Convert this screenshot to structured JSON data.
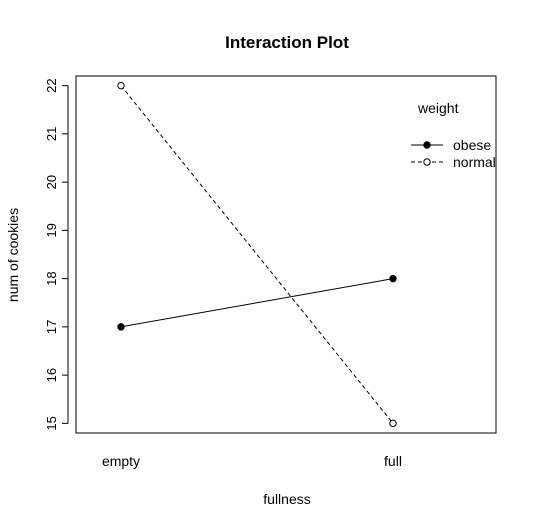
{
  "chart_data": {
    "type": "line",
    "title": "Interaction Plot",
    "xlabel": "fullness",
    "ylabel": "num of cookies",
    "categories": [
      "empty",
      "full"
    ],
    "ylim": [
      14.8,
      22.2
    ],
    "yticks": [
      15,
      16,
      17,
      18,
      19,
      20,
      21,
      22
    ],
    "grid": false,
    "legend": {
      "title": "weight",
      "placement": "top-right"
    },
    "series": [
      {
        "name": "obese",
        "values": [
          17,
          18
        ],
        "line": "solid",
        "marker": "filled-circle"
      },
      {
        "name": "normal",
        "values": [
          22,
          15
        ],
        "line": "dashed",
        "marker": "open-circle"
      }
    ],
    "colors": {
      "line": "#000000",
      "background": "#ffffff"
    }
  }
}
